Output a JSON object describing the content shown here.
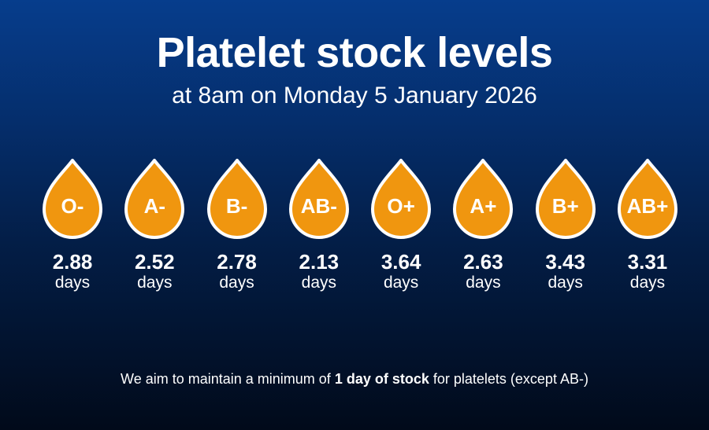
{
  "title": "Platelet stock levels",
  "subtitle": "at 8am on Monday 5 January 2026",
  "drop_fill": "#f0960f",
  "drop_outline": "#ffffff",
  "stock": [
    {
      "group": "O-",
      "value": "2.88",
      "unit": "days"
    },
    {
      "group": "A-",
      "value": "2.52",
      "unit": "days"
    },
    {
      "group": "B-",
      "value": "2.78",
      "unit": "days"
    },
    {
      "group": "AB-",
      "value": "2.13",
      "unit": "days"
    },
    {
      "group": "O+",
      "value": "3.64",
      "unit": "days"
    },
    {
      "group": "A+",
      "value": "2.63",
      "unit": "days"
    },
    {
      "group": "B+",
      "value": "3.43",
      "unit": "days"
    },
    {
      "group": "AB+",
      "value": "3.31",
      "unit": "days"
    }
  ],
  "footer": {
    "before": "We aim to maintain a minimum of ",
    "bold": "1 day of stock",
    "after": " for platelets (except AB-)"
  }
}
